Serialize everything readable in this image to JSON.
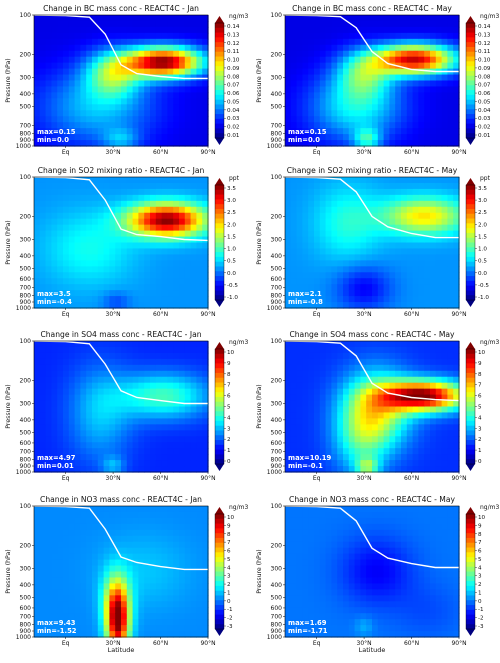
{
  "chart_data": [
    {
      "type": "heatmap",
      "panel": "bc-jan",
      "title": "Change in BC mass conc - REACT4C - Jan",
      "unit": "ng/m3",
      "ylabel": "Pressure (hPa)",
      "xlabel": "",
      "yticks": [
        "100",
        "200",
        "300",
        "400",
        "500",
        "700",
        "800",
        "900",
        "1000"
      ],
      "xticks": [
        "Eq",
        "30°N",
        "60°N",
        "90°N"
      ],
      "cbar_ticks": [
        "0.14",
        "0.13",
        "0.12",
        "0.11",
        "0.10",
        "0.09",
        "0.08",
        "0.07",
        "0.06",
        "0.05",
        "0.04",
        "0.03",
        "0.02",
        "0.01"
      ],
      "cbar_range": [
        0.01,
        0.14
      ],
      "max_label": "max=0.15",
      "min_label": "min=0.0",
      "pattern": "bc_jan",
      "tropopause": [
        [
          -20,
          100
        ],
        [
          0,
          101
        ],
        [
          15,
          104
        ],
        [
          25,
          140
        ],
        [
          35,
          240
        ],
        [
          45,
          280
        ],
        [
          60,
          295
        ],
        [
          75,
          305
        ],
        [
          90,
          305
        ]
      ]
    },
    {
      "type": "heatmap",
      "panel": "bc-may",
      "title": "Change in BC mass conc - REACT4C - May",
      "unit": "ng/m3",
      "ylabel": "Pressure (hPa)",
      "xlabel": "",
      "yticks": [
        "100",
        "200",
        "300",
        "400",
        "500",
        "700",
        "800",
        "900",
        "1000"
      ],
      "xticks": [
        "Eq",
        "30°N",
        "60°N",
        "90°N"
      ],
      "cbar_ticks": [
        "0.14",
        "0.13",
        "0.12",
        "0.11",
        "0.10",
        "0.09",
        "0.08",
        "0.07",
        "0.06",
        "0.05",
        "0.04",
        "0.03",
        "0.02",
        "0.01"
      ],
      "cbar_range": [
        0.01,
        0.14
      ],
      "max_label": "max=0.15",
      "min_label": "min=0.0",
      "pattern": "bc_may",
      "tropopause": [
        [
          -20,
          100
        ],
        [
          0,
          101
        ],
        [
          15,
          103
        ],
        [
          25,
          125
        ],
        [
          35,
          190
        ],
        [
          45,
          235
        ],
        [
          60,
          260
        ],
        [
          75,
          270
        ],
        [
          90,
          270
        ]
      ]
    },
    {
      "type": "heatmap",
      "panel": "so2-jan",
      "title": "Change in SO2 mixing ratio - REACT4C - Jan",
      "unit": "ppt",
      "ylabel": "Pressure (hPa)",
      "xlabel": "",
      "yticks": [
        "100",
        "200",
        "300",
        "400",
        "500",
        "600",
        "700",
        "800",
        "900",
        "1000"
      ],
      "xticks": [
        "Eq",
        "30°N",
        "60°N",
        "90°N"
      ],
      "cbar_ticks": [
        "3.5",
        "3.0",
        "2.5",
        "2.0",
        "1.5",
        "1.0",
        "0.5",
        "0.0",
        "-0.5",
        "-1.0"
      ],
      "cbar_range": [
        -1.0,
        3.5
      ],
      "max_label": "max=3.5",
      "min_label": "min=-0.4",
      "pattern": "so2_jan",
      "tropopause": [
        [
          -20,
          100
        ],
        [
          0,
          101
        ],
        [
          15,
          105
        ],
        [
          25,
          150
        ],
        [
          35,
          250
        ],
        [
          45,
          275
        ],
        [
          60,
          285
        ],
        [
          75,
          300
        ],
        [
          90,
          305
        ]
      ]
    },
    {
      "type": "heatmap",
      "panel": "so2-may",
      "title": "Change in SO2 mixing ratio - REACT4C - May",
      "unit": "ppt",
      "ylabel": "Pressure (hPa)",
      "xlabel": "",
      "yticks": [
        "100",
        "200",
        "300",
        "400",
        "500",
        "600",
        "700",
        "800",
        "900",
        "1000"
      ],
      "xticks": [
        "Eq",
        "30°N",
        "60°N",
        "90°N"
      ],
      "cbar_ticks": [
        "3.5",
        "3.0",
        "2.5",
        "2.0",
        "1.5",
        "1.0",
        "0.5",
        "0.0",
        "-0.5",
        "-1.0"
      ],
      "cbar_range": [
        -1.0,
        3.5
      ],
      "max_label": "max=2.1",
      "min_label": "min=-0.8",
      "pattern": "so2_may",
      "tropopause": [
        [
          -20,
          100
        ],
        [
          0,
          101
        ],
        [
          15,
          104
        ],
        [
          25,
          130
        ],
        [
          35,
          200
        ],
        [
          45,
          240
        ],
        [
          60,
          270
        ],
        [
          75,
          290
        ],
        [
          90,
          290
        ]
      ]
    },
    {
      "type": "heatmap",
      "panel": "so4-jan",
      "title": "Change in SO4 mass conc - REACT4C - Jan",
      "unit": "ng/m3",
      "ylabel": "Pressure (hPa)",
      "xlabel": "",
      "yticks": [
        "100",
        "200",
        "300",
        "400",
        "500",
        "600",
        "700",
        "800",
        "900",
        "1000"
      ],
      "xticks": [
        "Eq",
        "30°N",
        "60°N",
        "90°N"
      ],
      "cbar_ticks": [
        "10",
        "9",
        "8",
        "7",
        "6",
        "5",
        "4",
        "3",
        "2",
        "1",
        "0"
      ],
      "cbar_range": [
        0,
        10
      ],
      "max_label": "max=4.97",
      "min_label": "min=0.01",
      "pattern": "so4_jan",
      "tropopause": [
        [
          -20,
          100
        ],
        [
          0,
          101
        ],
        [
          15,
          105
        ],
        [
          25,
          150
        ],
        [
          35,
          240
        ],
        [
          45,
          270
        ],
        [
          60,
          285
        ],
        [
          75,
          300
        ],
        [
          90,
          300
        ]
      ]
    },
    {
      "type": "heatmap",
      "panel": "so4-may",
      "title": "Change in SO4 mass conc - REACT4C - May",
      "unit": "ng/m3",
      "ylabel": "Pressure (hPa)",
      "xlabel": "",
      "yticks": [
        "100",
        "200",
        "300",
        "400",
        "500",
        "600",
        "700",
        "800",
        "900",
        "1000"
      ],
      "xticks": [
        "Eq",
        "30°N",
        "60°N",
        "90°N"
      ],
      "cbar_ticks": [
        "10",
        "9",
        "8",
        "7",
        "6",
        "5",
        "4",
        "3",
        "2",
        "1",
        "0"
      ],
      "cbar_range": [
        0,
        10
      ],
      "max_label": "max=10.19",
      "min_label": "min=-0.1",
      "pattern": "so4_may",
      "tropopause": [
        [
          -20,
          100
        ],
        [
          0,
          101
        ],
        [
          15,
          104
        ],
        [
          25,
          130
        ],
        [
          35,
          210
        ],
        [
          45,
          250
        ],
        [
          60,
          270
        ],
        [
          75,
          280
        ],
        [
          90,
          285
        ]
      ]
    },
    {
      "type": "heatmap",
      "panel": "no3-jan",
      "title": "Change in NO3 mass conc - REACT4C - Jan",
      "unit": "ng/m3",
      "ylabel": "Pressure (hPa)",
      "xlabel": "Latitude",
      "yticks": [
        "100",
        "200",
        "300",
        "400",
        "500",
        "600",
        "700",
        "800",
        "900",
        "1000"
      ],
      "xticks": [
        "Eq",
        "30°N",
        "60°N",
        "90°N"
      ],
      "cbar_ticks": [
        "10",
        "9",
        "8",
        "7",
        "6",
        "5",
        "4",
        "3",
        "2",
        "1",
        "0",
        "-1",
        "-2",
        "-3"
      ],
      "cbar_range": [
        -3,
        10
      ],
      "max_label": "max=9.43",
      "min_label": "min=-1.52",
      "pattern": "no3_jan",
      "tropopause": [
        [
          -20,
          100
        ],
        [
          0,
          101
        ],
        [
          15,
          104
        ],
        [
          25,
          150
        ],
        [
          35,
          245
        ],
        [
          45,
          270
        ],
        [
          60,
          290
        ],
        [
          75,
          305
        ],
        [
          90,
          305
        ]
      ]
    },
    {
      "type": "heatmap",
      "panel": "no3-may",
      "title": "Change in NO3 mass conc - REACT4C - May",
      "unit": "ng/m3",
      "ylabel": "Pressure (hPa)",
      "xlabel": "Latitude",
      "yticks": [
        "100",
        "200",
        "300",
        "400",
        "500",
        "600",
        "700",
        "800",
        "900",
        "1000"
      ],
      "xticks": [
        "Eq",
        "30°N",
        "60°N",
        "90°N"
      ],
      "cbar_ticks": [
        "10",
        "9",
        "8",
        "7",
        "6",
        "5",
        "4",
        "3",
        "2",
        "1",
        "0",
        "-1",
        "-2",
        "-3"
      ],
      "cbar_range": [
        -3,
        10
      ],
      "max_label": "max=1.69",
      "min_label": "min=-1.71",
      "pattern": "no3_may",
      "tropopause": [
        [
          -20,
          100
        ],
        [
          0,
          101
        ],
        [
          15,
          104
        ],
        [
          25,
          130
        ],
        [
          35,
          210
        ],
        [
          45,
          250
        ],
        [
          60,
          275
        ],
        [
          75,
          295
        ],
        [
          90,
          295
        ]
      ]
    }
  ]
}
